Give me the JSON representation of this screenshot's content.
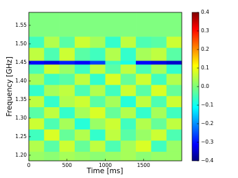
{
  "chart_data": {
    "type": "heatmap",
    "xlabel": "Time [ms]",
    "ylabel": "Frequency [GHz]",
    "xlim": [
      0,
      2000
    ],
    "ylim": [
      1.185,
      1.585
    ],
    "xticks": [
      0,
      500,
      1000,
      1500
    ],
    "yticks": [
      {
        "value": 1.2,
        "label": "1.20"
      },
      1.25,
      {
        "value": 1.3,
        "label": "1.30"
      },
      1.35,
      {
        "value": 1.4,
        "label": "1.40"
      },
      1.45,
      {
        "value": 1.5,
        "label": "1.50"
      },
      1.55
    ],
    "colormap": "jet",
    "zlim": [
      -0.4,
      0.4
    ],
    "zticks": [
      {
        "value": -0.4,
        "label": "−0.4"
      },
      {
        "value": -0.3,
        "label": "−0.3"
      },
      {
        "value": -0.2,
        "label": "−0.2"
      },
      {
        "value": -0.1,
        "label": "−0.1"
      },
      {
        "value": 0,
        "label": "0.0"
      },
      0.1,
      0.2,
      0.3,
      0.4
    ],
    "xbins": [
      0,
      200,
      400,
      600,
      800,
      1000,
      1200,
      1400,
      1600,
      1800,
      2000
    ],
    "ybins": [
      1.185,
      1.21,
      1.24,
      1.27,
      1.3,
      1.33,
      1.36,
      1.39,
      1.42,
      1.445,
      1.455,
      1.49,
      1.52,
      1.585
    ],
    "z": [
      [
        0.02,
        0.01,
        0.03,
        0.02,
        0.01,
        0.02,
        0.03,
        0.01,
        0.02,
        0.02
      ],
      [
        0.04,
        -0.03,
        0.06,
        -0.02,
        0.05,
        -0.04,
        0.03,
        0.07,
        -0.05,
        0.02
      ],
      [
        -0.05,
        0.07,
        -0.02,
        0.04,
        -0.06,
        0.05,
        -0.03,
        0.02,
        0.06,
        -0.04
      ],
      [
        0.06,
        -0.04,
        0.03,
        -0.07,
        0.02,
        0.06,
        -0.05,
        0.04,
        -0.02,
        0.05
      ],
      [
        -0.03,
        0.05,
        -0.06,
        0.03,
        0.07,
        -0.02,
        0.04,
        -0.06,
        0.03,
        -0.05
      ],
      [
        0.05,
        -0.06,
        0.04,
        0.06,
        -0.03,
        0.03,
        -0.07,
        0.05,
        -0.04,
        0.06
      ],
      [
        -0.06,
        0.03,
        0.05,
        -0.04,
        0.04,
        -0.05,
        0.06,
        -0.03,
        0.07,
        -0.02
      ],
      [
        0.03,
        -0.05,
        -0.03,
        0.05,
        -0.06,
        0.07,
        -0.02,
        0.06,
        -0.05,
        0.04
      ],
      [
        -0.04,
        0.06,
        0.02,
        -0.05,
        0.05,
        -0.03,
        0.05,
        -0.04,
        0.03,
        -0.06
      ],
      [
        -0.3,
        -0.32,
        -0.28,
        -0.3,
        -0.25,
        -0.05,
        -0.08,
        -0.3,
        -0.32,
        -0.34
      ],
      [
        0.05,
        -0.04,
        0.06,
        -0.03,
        -0.05,
        0.04,
        -0.06,
        0.03,
        0.05,
        -0.03
      ],
      [
        -0.05,
        0.04,
        -0.03,
        0.06,
        0.03,
        -0.06,
        0.05,
        -0.04,
        -0.03,
        0.06
      ],
      [
        0,
        0,
        0,
        0,
        0,
        0,
        0,
        0,
        0,
        0
      ]
    ]
  }
}
